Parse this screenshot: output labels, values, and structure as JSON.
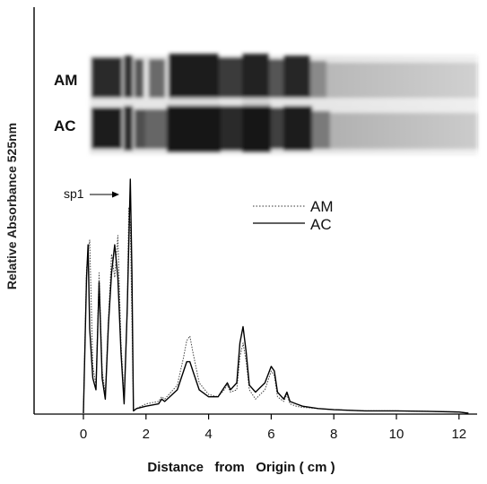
{
  "chart_data": {
    "type": "line",
    "xlabel": "Distance   from   Origin ( cm )",
    "ylabel": "Relative   Absorbance   525nm",
    "xlim": [
      -1.6,
      12.6
    ],
    "ylim": [
      0,
      100
    ],
    "x_ticks": [
      0,
      2,
      4,
      6,
      8,
      10,
      12
    ],
    "x_tick_labels": [
      "0",
      "2",
      "4",
      "6",
      "8",
      "10",
      "12"
    ],
    "gel_labels": [
      "AM",
      "AC"
    ],
    "annotation": "sp1",
    "legend": {
      "position": "top-right"
    },
    "series": [
      {
        "name": "AM",
        "style": "dotted",
        "x": [
          0.0,
          0.1,
          0.2,
          0.3,
          0.4,
          0.5,
          0.6,
          0.7,
          0.8,
          0.9,
          1.0,
          1.1,
          1.2,
          1.3,
          1.4,
          1.45,
          1.5,
          1.55,
          1.6,
          1.7,
          2.0,
          2.4,
          2.5,
          2.6,
          3.0,
          3.2,
          3.3,
          3.4,
          3.5,
          3.7,
          4.0,
          4.3,
          4.5,
          4.6,
          4.7,
          4.9,
          5.0,
          5.1,
          5.2,
          5.3,
          5.5,
          5.8,
          6.0,
          6.1,
          6.2,
          6.4,
          6.5,
          6.6,
          6.8,
          7.0,
          7.5,
          8.0,
          9.0,
          10.0,
          11.0,
          12.0,
          12.3
        ],
        "y": [
          0.0,
          62.0,
          74.0,
          20.0,
          12.0,
          60.0,
          18.0,
          8.0,
          40.0,
          68.0,
          58.0,
          76.0,
          30.0,
          6.0,
          44.0,
          88.0,
          80.0,
          40.0,
          1.0,
          2.0,
          4.0,
          5.0,
          7.0,
          6.0,
          12.0,
          24.0,
          31.0,
          33.0,
          26.0,
          13.0,
          8.0,
          7.0,
          10.0,
          12.0,
          9.0,
          10.0,
          24.0,
          30.0,
          22.0,
          10.0,
          6.0,
          10.0,
          18.0,
          16.0,
          7.0,
          5.0,
          8.0,
          4.0,
          3.0,
          2.5,
          2.0,
          1.5,
          1.0,
          1.0,
          0.8,
          0.5,
          0.0
        ]
      },
      {
        "name": "AC",
        "style": "solid",
        "x": [
          0.0,
          0.1,
          0.15,
          0.2,
          0.3,
          0.4,
          0.5,
          0.6,
          0.7,
          0.8,
          0.9,
          1.0,
          1.1,
          1.2,
          1.3,
          1.4,
          1.5,
          1.55,
          1.6,
          1.7,
          2.0,
          2.4,
          2.5,
          2.6,
          3.0,
          3.2,
          3.3,
          3.4,
          3.5,
          3.7,
          4.0,
          4.3,
          4.5,
          4.6,
          4.7,
          4.9,
          5.0,
          5.1,
          5.2,
          5.3,
          5.5,
          5.8,
          6.0,
          6.1,
          6.2,
          6.4,
          6.5,
          6.6,
          6.8,
          7.0,
          7.5,
          8.0,
          9.0,
          10.0,
          11.0,
          12.0,
          12.3
        ],
        "y": [
          0.0,
          58.0,
          72.0,
          36.0,
          15.0,
          10.0,
          56.0,
          15.0,
          6.0,
          38.0,
          60.0,
          72.0,
          58.0,
          26.0,
          4.0,
          45.0,
          100.0,
          60.0,
          1.0,
          2.0,
          3.0,
          4.0,
          6.0,
          5.0,
          10.0,
          18.0,
          22.0,
          22.0,
          18.0,
          10.0,
          7.0,
          7.0,
          11.0,
          13.0,
          10.0,
          13.0,
          30.0,
          37.0,
          26.0,
          12.0,
          9.0,
          13.0,
          20.0,
          18.0,
          9.0,
          6.0,
          9.0,
          5.0,
          4.0,
          3.0,
          2.0,
          1.5,
          1.0,
          1.0,
          0.8,
          0.5,
          0.0
        ]
      }
    ]
  }
}
